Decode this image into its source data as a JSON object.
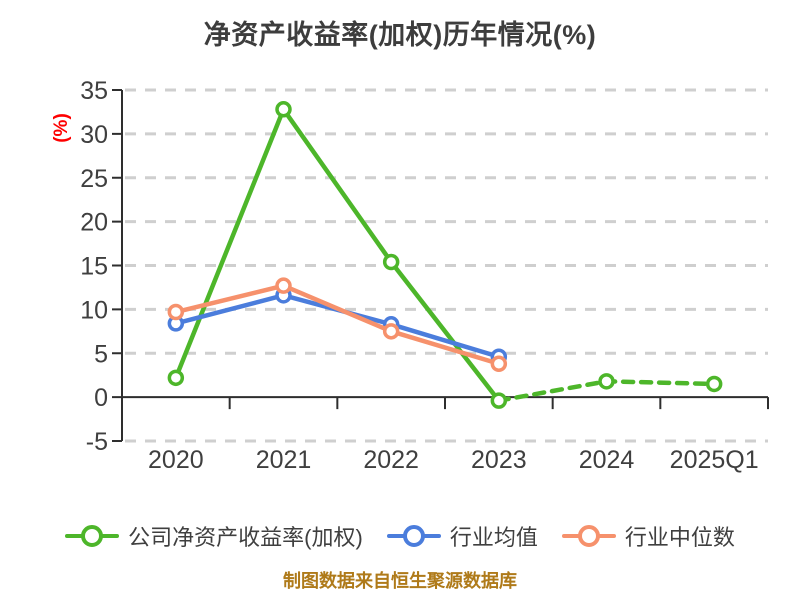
{
  "title": {
    "text": "净资产收益率(加权)历年情况(%)"
  },
  "footer": {
    "text": "制图数据来自恒生聚源数据库"
  },
  "chart_data": {
    "type": "line",
    "categories": [
      "2020",
      "2021",
      "2022",
      "2023",
      "2024",
      "2025Q1"
    ],
    "series": [
      {
        "name": "公司净资产收益率(加权)",
        "color": "#4db62a",
        "values": [
          2.2,
          32.8,
          15.4,
          -0.4,
          1.8,
          1.5
        ],
        "dash_from_index": 3
      },
      {
        "name": "行业均值",
        "color": "#4b7ddc",
        "values": [
          8.4,
          11.6,
          8.3,
          4.6,
          null,
          null
        ],
        "dash_from_index": null
      },
      {
        "name": "行业中位数",
        "color": "#f6916c",
        "values": [
          9.7,
          12.7,
          7.5,
          3.8,
          null,
          null
        ],
        "dash_from_index": null
      }
    ],
    "ylabel": "(%)",
    "ylim": [
      -5,
      35
    ],
    "ytick_step": 5,
    "grid": "dashed-horizontal",
    "legend_position": "bottom",
    "marker": "white-filled-circle",
    "colors": {
      "grid": "#cfcfcf",
      "axis": "#2e2e2e",
      "tick_label": "#3f3f3f",
      "title": "#3d3d3d",
      "footer": "#af7a19",
      "ylabel": "#fe0000",
      "background": "#ffffff"
    }
  }
}
